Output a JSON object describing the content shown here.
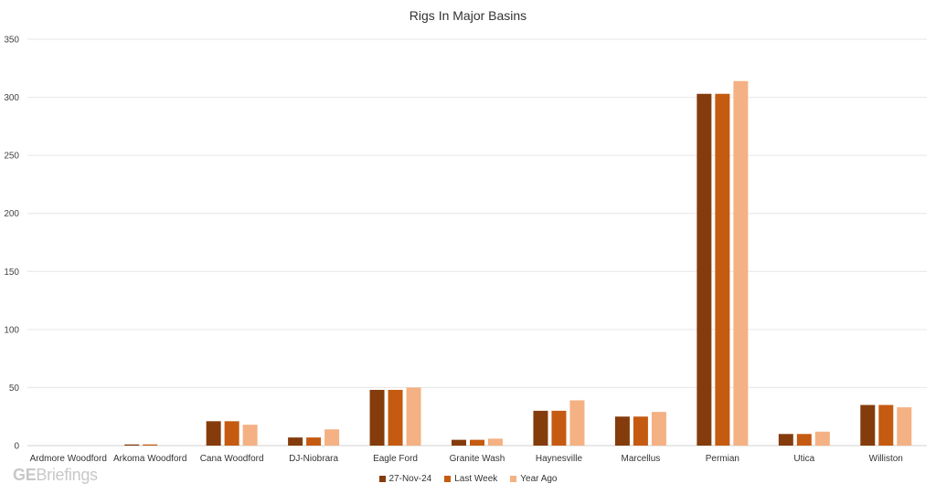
{
  "chart_data": {
    "type": "bar",
    "title": "Rigs In Major Basins",
    "xlabel": "",
    "ylabel": "",
    "ylim": [
      0,
      350
    ],
    "yticks": [
      0,
      50,
      100,
      150,
      200,
      250,
      300,
      350
    ],
    "grid": true,
    "legend_position": "bottom",
    "categories": [
      "Ardmore Woodford",
      "Arkoma Woodford",
      "Cana Woodford",
      "DJ-Niobrara",
      "Eagle Ford",
      "Granite Wash",
      "Haynesville",
      "Marcellus",
      "Permian",
      "Utica",
      "Williston"
    ],
    "series": [
      {
        "name": "27-Nov-24",
        "color": "#843c0c",
        "values": [
          0,
          1,
          21,
          7,
          48,
          5,
          30,
          25,
          303,
          10,
          35
        ]
      },
      {
        "name": "Last Week",
        "color": "#c55a11",
        "values": [
          0,
          1,
          21,
          7,
          48,
          5,
          30,
          25,
          303,
          10,
          35
        ]
      },
      {
        "name": "Year Ago",
        "color": "#f4b183",
        "values": [
          0,
          0,
          18,
          14,
          50,
          6,
          39,
          29,
          314,
          12,
          33
        ]
      }
    ]
  },
  "watermark": {
    "prefix": "GE",
    "suffix": "Briefings"
  }
}
